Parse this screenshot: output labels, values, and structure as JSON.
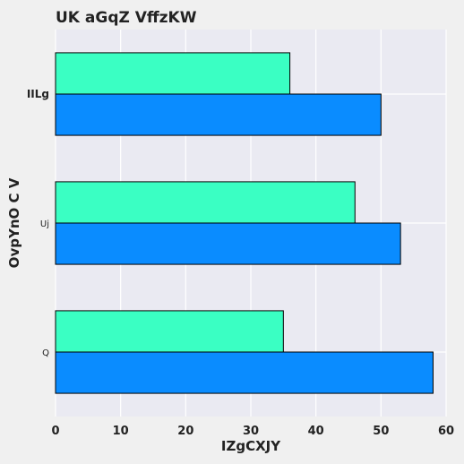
{
  "chart_data": {
    "type": "bar",
    "orientation": "horizontal",
    "title": "UK aGqZ VffzKW",
    "xlabel": "IZgCXJY",
    "ylabel": "OvpYnO C  V",
    "categories": [
      "Q",
      "Uj",
      "IILg"
    ],
    "category_emphasis": [
      false,
      false,
      true
    ],
    "series": [
      {
        "values": [
          58,
          53,
          50
        ],
        "color": "#0a8cff"
      },
      {
        "values": [
          35,
          46,
          36
        ],
        "color": "#3affc3"
      }
    ],
    "xlim": [
      0,
      60
    ],
    "xticks": [
      0,
      10,
      20,
      30,
      40,
      50,
      60
    ],
    "grid": true,
    "legend": "none",
    "background": "#eaeaf2"
  }
}
